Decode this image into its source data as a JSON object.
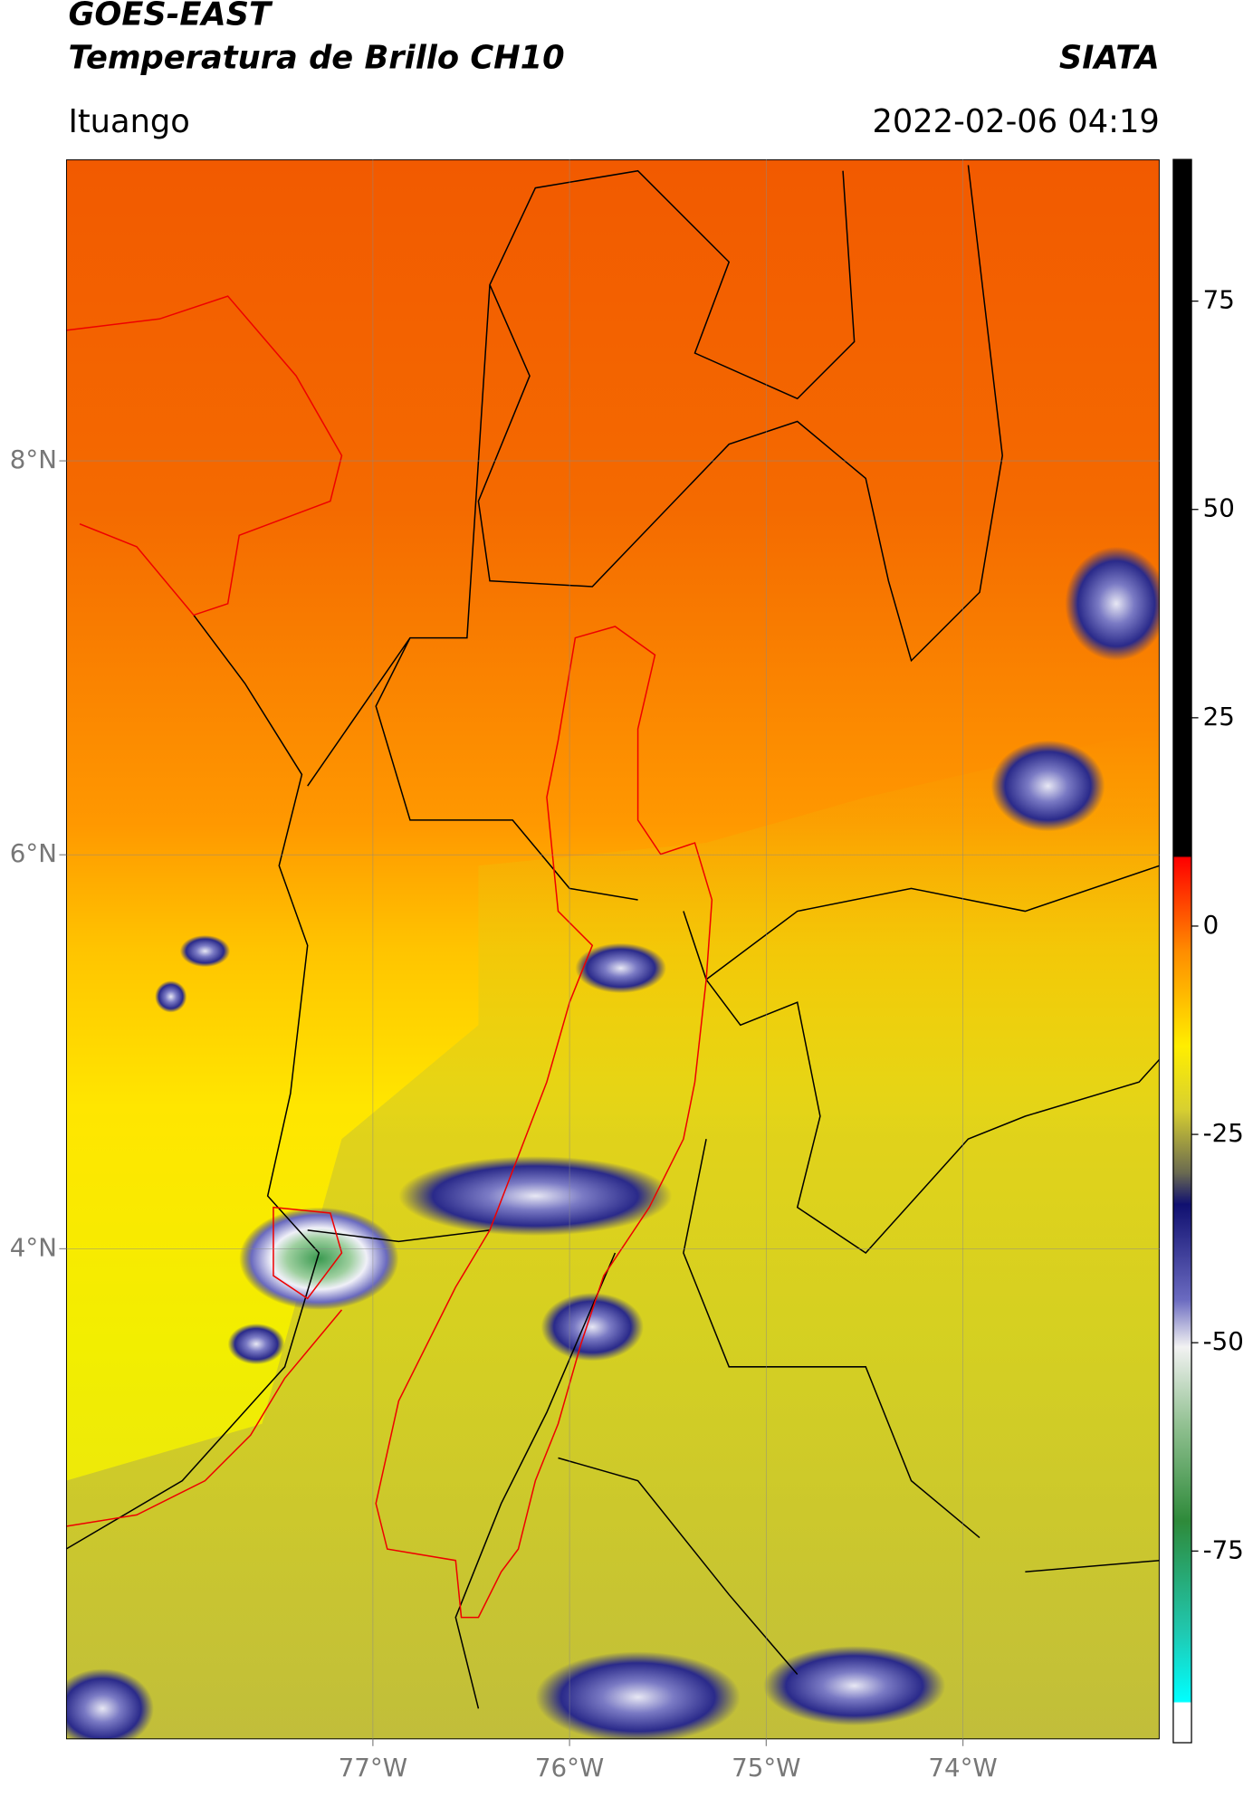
{
  "header": {
    "title": "GOES-EAST",
    "subtitle": "Temperatura de Brillo CH10",
    "brand": "SIATA",
    "location": "Ituango",
    "datetime": "2022-02-06 04:19"
  },
  "map": {
    "xlim": [
      -78.56,
      -73.0
    ],
    "ylim": [
      1.51,
      9.53
    ],
    "xticks": [
      {
        "value": -77,
        "label": "77°W"
      },
      {
        "value": -76,
        "label": "76°W"
      },
      {
        "value": -75,
        "label": "75°W"
      },
      {
        "value": -74,
        "label": "74°W"
      }
    ],
    "yticks": [
      {
        "value": 8,
        "label": "8°N"
      },
      {
        "value": 6,
        "label": "6°N"
      },
      {
        "value": 4,
        "label": "4°N"
      }
    ],
    "grid": true
  },
  "colorbar": {
    "lim": [
      -98,
      92
    ],
    "ticks": [
      75,
      50,
      25,
      0,
      -25,
      -50,
      -75
    ]
  }
}
